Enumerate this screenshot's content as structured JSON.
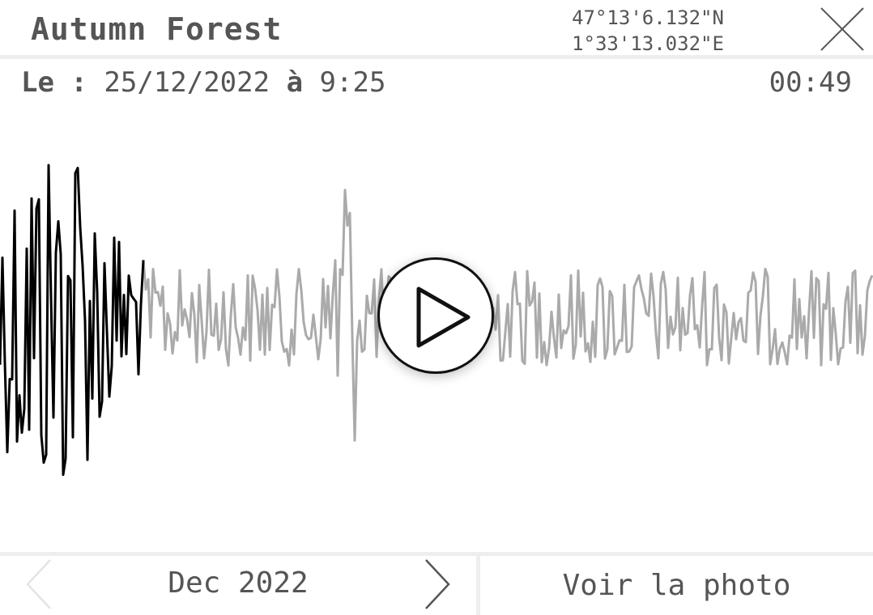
{
  "header": {
    "title": "Autumn Forest",
    "latitude": "47°13'6.132\"N",
    "longitude": "1°33'13.032\"E",
    "close_icon": "close-icon"
  },
  "recording": {
    "date_prefix": "Le :",
    "date": "25/12/2022",
    "date_joiner": "à",
    "time": "9:25",
    "duration": "00:49",
    "progress": 0.165,
    "played_color": "#000000",
    "unplayed_color": "#aaaaaa",
    "play_icon": "play-icon"
  },
  "footer": {
    "month": "Dec 2022",
    "prev_icon": "chevron-left-icon",
    "next_icon": "chevron-right-icon",
    "photo_label": "Voir la photo",
    "prev_enabled": false
  }
}
